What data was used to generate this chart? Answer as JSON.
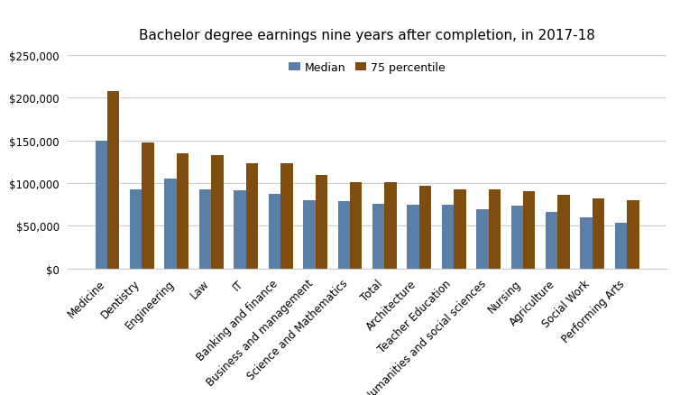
{
  "title": "Bachelor degree earnings nine years after completion, in 2017-18",
  "categories": [
    "Medicine",
    "Dentistry",
    "Engineering",
    "Law",
    "IT",
    "Banking and finance",
    "Business and management",
    "Science and Mathematics",
    "Total",
    "Architecture",
    "Teacher Education",
    "Humanities and social sciences",
    "Nursing",
    "Agriculture",
    "Social Work",
    "Performing Arts"
  ],
  "median": [
    150000,
    93000,
    105000,
    93000,
    92000,
    87000,
    80000,
    79000,
    76000,
    75000,
    75000,
    69000,
    73000,
    66000,
    60000,
    53000
  ],
  "p75": [
    208000,
    148000,
    135000,
    133000,
    123000,
    123000,
    110000,
    101000,
    101000,
    97000,
    93000,
    93000,
    90000,
    86000,
    82000,
    80000
  ],
  "bar_color_median": "#5b7fa6",
  "bar_color_p75": "#7d4e0f",
  "legend_labels": [
    "Median",
    "75 percentile"
  ],
  "ylim": [
    0,
    260000
  ],
  "yticks": [
    0,
    50000,
    100000,
    150000,
    200000,
    250000
  ],
  "background_color": "#ffffff",
  "grid_color": "#cccccc",
  "title_fontsize": 11,
  "tick_fontsize": 8.5,
  "legend_fontsize": 9,
  "bar_width": 0.35
}
